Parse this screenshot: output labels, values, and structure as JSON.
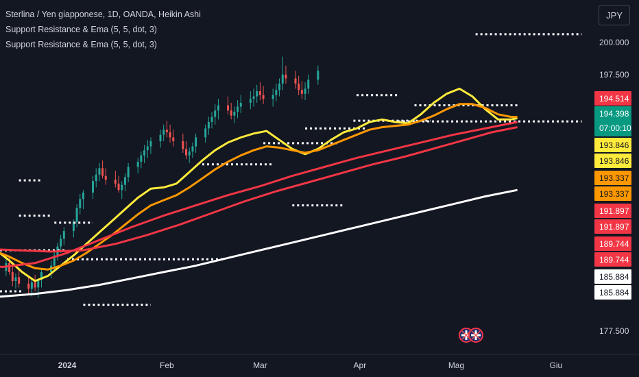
{
  "legend": {
    "symbol_line": "Sterlina / Yen giapponese, 1D, OANDA, Heikin Ashi",
    "indicator_1": "Support Resistance & Ema (5, 5, dot, 3)",
    "indicator_2": "Support Resistance & Ema (5, 5, dot, 3)"
  },
  "currency_button": "JPY",
  "colors": {
    "background": "#131722",
    "up": "#26a69a",
    "down": "#ef5350",
    "ema_fast": "#ffeb3b",
    "ema_mid": "#ff9800",
    "ema_slow": "#f23645",
    "ema_long": "#ffffff",
    "dots": "#ffffff"
  },
  "chart_data": {
    "type": "candlestick",
    "title": "Sterlina / Yen giapponese, 1D, OANDA, Heikin Ashi",
    "y_axis_ticks": [
      "200.000",
      "197.500",
      "177.500"
    ],
    "x_axis_ticks": [
      "2024",
      "Feb",
      "Mar",
      "Apr",
      "Mag",
      "Giu"
    ],
    "ylim": [
      176.8,
      201.3
    ],
    "grid": false,
    "price_tags": [
      {
        "label": "194.514",
        "value": 194.514,
        "bg": "#f23645",
        "fg": "#ffffff"
      },
      {
        "label": "194.398",
        "sub": "07:00:10",
        "value": 194.398,
        "bg": "#089981",
        "fg": "#ffffff"
      },
      {
        "label": "193.846",
        "value": 193.846,
        "bg": "#ffeb3b",
        "fg": "#131722"
      },
      {
        "label": "193.846",
        "value": 193.846,
        "bg": "#ffeb3b",
        "fg": "#131722"
      },
      {
        "label": "193.337",
        "value": 193.337,
        "bg": "#ff9800",
        "fg": "#131722"
      },
      {
        "label": "193.337",
        "value": 193.337,
        "bg": "#ff9800",
        "fg": "#131722"
      },
      {
        "label": "191.897",
        "value": 191.897,
        "bg": "#f23645",
        "fg": "#ffffff"
      },
      {
        "label": "191.897",
        "value": 191.897,
        "bg": "#f23645",
        "fg": "#ffffff"
      },
      {
        "label": "189.744",
        "value": 189.744,
        "bg": "#f23645",
        "fg": "#ffffff"
      },
      {
        "label": "189.744",
        "value": 189.744,
        "bg": "#f23645",
        "fg": "#ffffff"
      },
      {
        "label": "185.884",
        "value": 185.884,
        "bg": "#ffffff",
        "fg": "#131722"
      },
      {
        "label": "185.884",
        "value": 185.884,
        "bg": "#ffffff",
        "fg": "#131722"
      }
    ],
    "support_resistance_levels": [
      {
        "value": 200.65,
        "from_day": 127,
        "to_day": 160
      },
      {
        "value": 189.25,
        "from_day": -15,
        "to_day": -8
      },
      {
        "value": 186.5,
        "from_day": -15,
        "to_day": -5
      },
      {
        "value": 185.95,
        "from_day": -4,
        "to_day": 8
      },
      {
        "value": 187.3,
        "from_day": 70,
        "to_day": 86
      },
      {
        "value": 190.5,
        "from_day": 42,
        "to_day": 64
      },
      {
        "value": 192.15,
        "from_day": 61,
        "to_day": 84
      },
      {
        "value": 193.3,
        "from_day": 74,
        "to_day": 93
      },
      {
        "value": 193.85,
        "from_day": 103,
        "to_day": 160
      },
      {
        "value": 193.9,
        "from_day": 89,
        "to_day": 113
      },
      {
        "value": 195.1,
        "from_day": 108,
        "to_day": 140
      },
      {
        "value": 195.9,
        "from_day": 90,
        "to_day": 103
      },
      {
        "value": 183.8,
        "from_day": -23,
        "to_day": 0
      },
      {
        "value": 183.1,
        "from_day": 0,
        "to_day": 49
      },
      {
        "value": 180.6,
        "from_day": -33,
        "to_day": -14
      },
      {
        "value": 179.55,
        "from_day": 5,
        "to_day": 26
      }
    ],
    "ema_series": [
      {
        "key": "ema_fast",
        "points": [
          [
            -33,
            185.9
          ],
          [
            -28,
            185.1
          ],
          [
            -23,
            184.0
          ],
          [
            -18,
            183.0
          ],
          [
            -14,
            182.1
          ],
          [
            -10,
            181.4
          ],
          [
            -6,
            181.8
          ],
          [
            -2,
            182.6
          ],
          [
            2,
            183.4
          ],
          [
            6,
            184.3
          ],
          [
            10,
            185.2
          ],
          [
            14,
            186.1
          ],
          [
            18,
            187.0
          ],
          [
            22,
            187.9
          ],
          [
            26,
            188.6
          ],
          [
            30,
            188.7
          ],
          [
            34,
            189.0
          ],
          [
            38,
            189.9
          ],
          [
            42,
            190.8
          ],
          [
            46,
            191.6
          ],
          [
            50,
            192.2
          ],
          [
            54,
            192.6
          ],
          [
            58,
            192.9
          ],
          [
            62,
            193.1
          ],
          [
            66,
            192.4
          ],
          [
            70,
            191.7
          ],
          [
            74,
            191.3
          ],
          [
            78,
            191.7
          ],
          [
            82,
            192.4
          ],
          [
            86,
            193.0
          ],
          [
            90,
            193.3
          ],
          [
            94,
            193.8
          ],
          [
            98,
            194.0
          ],
          [
            102,
            193.8
          ],
          [
            106,
            193.7
          ],
          [
            110,
            194.4
          ],
          [
            114,
            195.3
          ],
          [
            118,
            196.0
          ],
          [
            122,
            196.4
          ],
          [
            126,
            195.8
          ],
          [
            130,
            194.8
          ],
          [
            134,
            194.0
          ],
          [
            138,
            194.0
          ],
          [
            140,
            194.1
          ]
        ]
      },
      {
        "key": "ema_mid",
        "points": [
          [
            -33,
            184.7
          ],
          [
            -28,
            184.3
          ],
          [
            -23,
            183.8
          ],
          [
            -18,
            183.3
          ],
          [
            -14,
            182.8
          ],
          [
            -10,
            182.4
          ],
          [
            -6,
            182.3
          ],
          [
            -2,
            182.6
          ],
          [
            2,
            183.0
          ],
          [
            6,
            183.6
          ],
          [
            10,
            184.3
          ],
          [
            14,
            185.0
          ],
          [
            18,
            185.8
          ],
          [
            22,
            186.6
          ],
          [
            26,
            187.3
          ],
          [
            30,
            187.7
          ],
          [
            34,
            188.1
          ],
          [
            38,
            188.7
          ],
          [
            42,
            189.4
          ],
          [
            46,
            190.1
          ],
          [
            50,
            190.7
          ],
          [
            54,
            191.2
          ],
          [
            58,
            191.6
          ],
          [
            62,
            191.9
          ],
          [
            66,
            191.8
          ],
          [
            70,
            191.6
          ],
          [
            74,
            191.4
          ],
          [
            78,
            191.6
          ],
          [
            82,
            192.0
          ],
          [
            86,
            192.4
          ],
          [
            90,
            192.8
          ],
          [
            94,
            193.2
          ],
          [
            98,
            193.4
          ],
          [
            102,
            193.5
          ],
          [
            106,
            193.6
          ],
          [
            110,
            193.9
          ],
          [
            114,
            194.3
          ],
          [
            118,
            194.8
          ],
          [
            122,
            195.2
          ],
          [
            126,
            195.2
          ],
          [
            130,
            194.9
          ],
          [
            134,
            194.4
          ],
          [
            138,
            194.2
          ],
          [
            140,
            194.2
          ]
        ]
      },
      {
        "key": "ema_slow",
        "points": [
          [
            -33,
            184.0
          ],
          [
            -25,
            183.9
          ],
          [
            -15,
            183.8
          ],
          [
            -5,
            183.7
          ],
          [
            5,
            183.8
          ],
          [
            15,
            184.3
          ],
          [
            25,
            185.0
          ],
          [
            35,
            185.8
          ],
          [
            45,
            186.7
          ],
          [
            55,
            187.6
          ],
          [
            65,
            188.4
          ],
          [
            75,
            189.1
          ],
          [
            85,
            189.8
          ],
          [
            95,
            190.5
          ],
          [
            105,
            191.1
          ],
          [
            115,
            191.8
          ],
          [
            125,
            192.5
          ],
          [
            132,
            193.0
          ],
          [
            140,
            193.4
          ]
        ]
      },
      {
        "key": "ema_long",
        "points": [
          [
            -33,
            180.0
          ],
          [
            -20,
            180.2
          ],
          [
            -10,
            180.4
          ],
          [
            0,
            180.7
          ],
          [
            10,
            181.1
          ],
          [
            20,
            181.6
          ],
          [
            30,
            182.1
          ],
          [
            40,
            182.6
          ],
          [
            50,
            183.2
          ],
          [
            60,
            183.8
          ],
          [
            70,
            184.4
          ],
          [
            80,
            185.0
          ],
          [
            90,
            185.6
          ],
          [
            100,
            186.2
          ],
          [
            110,
            186.8
          ],
          [
            120,
            187.4
          ],
          [
            130,
            188.0
          ],
          [
            140,
            188.5
          ]
        ]
      },
      {
        "key": "ema_slow",
        "points": [
          [
            -33,
            182.6
          ],
          [
            -20,
            182.5
          ],
          [
            -10,
            182.8
          ],
          [
            0,
            183.6
          ],
          [
            10,
            184.6
          ],
          [
            20,
            185.6
          ],
          [
            30,
            186.5
          ],
          [
            40,
            187.3
          ],
          [
            50,
            188.1
          ],
          [
            60,
            188.8
          ],
          [
            70,
            189.6
          ],
          [
            80,
            190.3
          ],
          [
            90,
            191.0
          ],
          [
            100,
            191.6
          ],
          [
            110,
            192.2
          ],
          [
            120,
            192.8
          ],
          [
            130,
            193.3
          ],
          [
            140,
            193.8
          ]
        ]
      }
    ],
    "candles_note": "Heikin Ashi daily candles; approximate OHLC per trading day (day index relative to 1 Jan 2024)",
    "candles": [
      [
        -33,
        185.6,
        186.2,
        184.9,
        185.9
      ],
      [
        -32,
        185.9,
        186.4,
        185.0,
        185.2
      ],
      [
        -31,
        185.2,
        185.6,
        184.5,
        184.8
      ],
      [
        -30,
        184.8,
        185.2,
        183.8,
        184.1
      ],
      [
        -29,
        184.1,
        184.6,
        183.0,
        183.4
      ],
      [
        -26,
        183.4,
        184.0,
        182.6,
        183.8
      ],
      [
        -25,
        183.8,
        184.5,
        183.0,
        183.3
      ],
      [
        -24,
        183.3,
        183.7,
        182.2,
        182.6
      ],
      [
        -23,
        182.6,
        183.1,
        181.5,
        181.9
      ],
      [
        -22,
        181.9,
        182.5,
        181.0,
        182.2
      ],
      [
        -19,
        182.2,
        183.2,
        181.8,
        182.8
      ],
      [
        -18,
        182.8,
        183.4,
        181.9,
        182.1
      ],
      [
        -17,
        182.1,
        182.6,
        181.0,
        181.4
      ],
      [
        -16,
        181.4,
        182.0,
        180.8,
        181.7
      ],
      [
        -15,
        181.7,
        182.3,
        180.9,
        181.2
      ],
      [
        -12,
        181.2,
        181.8,
        180.4,
        180.8
      ],
      [
        -11,
        180.8,
        181.5,
        180.2,
        181.3
      ],
      [
        -10,
        181.3,
        181.9,
        180.6,
        180.9
      ],
      [
        -9,
        180.9,
        181.6,
        180.1,
        181.5
      ],
      [
        -8,
        181.5,
        182.4,
        180.9,
        182.1
      ],
      [
        -5,
        182.1,
        183.0,
        181.6,
        182.6
      ],
      [
        -4,
        182.6,
        183.8,
        182.2,
        183.4
      ],
      [
        -3,
        183.4,
        184.4,
        183.0,
        184.1
      ],
      [
        -2,
        184.1,
        185.0,
        183.6,
        184.7
      ],
      [
        -1,
        184.7,
        185.6,
        184.2,
        185.3
      ],
      [
        2,
        185.3,
        186.2,
        184.8,
        186.0
      ],
      [
        3,
        186.0,
        187.4,
        185.6,
        187.1
      ],
      [
        4,
        187.1,
        188.2,
        186.6,
        187.8
      ],
      [
        5,
        187.8,
        188.5,
        187.0,
        188.3
      ],
      [
        8,
        188.3,
        189.6,
        187.8,
        189.2
      ],
      [
        9,
        189.2,
        190.2,
        188.7,
        189.7
      ],
      [
        10,
        189.7,
        190.6,
        189.2,
        190.2
      ],
      [
        11,
        190.2,
        190.8,
        189.4,
        189.6
      ],
      [
        12,
        189.6,
        190.2,
        188.9,
        189.3
      ],
      [
        15,
        189.3,
        190.0,
        188.7,
        189.0
      ],
      [
        16,
        189.0,
        189.6,
        188.3,
        188.5
      ],
      [
        17,
        188.5,
        189.2,
        187.8,
        188.9
      ],
      [
        18,
        188.9,
        189.8,
        188.4,
        189.5
      ],
      [
        19,
        189.5,
        190.6,
        189.1,
        190.3
      ],
      [
        22,
        190.3,
        191.0,
        189.8,
        190.7
      ],
      [
        23,
        190.7,
        191.5,
        190.2,
        191.2
      ],
      [
        24,
        191.2,
        192.0,
        190.6,
        191.6
      ],
      [
        25,
        191.6,
        192.4,
        191.0,
        191.9
      ],
      [
        26,
        191.9,
        192.6,
        191.3,
        192.3
      ],
      [
        29,
        192.3,
        193.2,
        191.8,
        192.8
      ],
      [
        30,
        192.8,
        193.6,
        192.3,
        193.2
      ],
      [
        31,
        193.2,
        193.9,
        192.6,
        193.0
      ],
      [
        32,
        193.0,
        193.6,
        192.2,
        192.6
      ],
      [
        33,
        192.6,
        193.2,
        191.9,
        192.3
      ],
      [
        36,
        192.3,
        192.9,
        191.4,
        191.7
      ],
      [
        37,
        191.7,
        192.3,
        190.9,
        191.2
      ],
      [
        38,
        191.2,
        191.8,
        190.6,
        191.5
      ],
      [
        39,
        191.5,
        192.2,
        191.0,
        191.9
      ],
      [
        40,
        191.9,
        192.9,
        191.4,
        192.6
      ],
      [
        43,
        192.6,
        193.6,
        192.2,
        193.3
      ],
      [
        44,
        193.3,
        194.2,
        192.8,
        193.8
      ],
      [
        45,
        193.8,
        194.6,
        193.3,
        194.2
      ],
      [
        46,
        194.2,
        195.2,
        193.6,
        194.7
      ],
      [
        47,
        194.7,
        195.6,
        194.0,
        195.1
      ],
      [
        50,
        195.1,
        195.8,
        194.4,
        194.7
      ],
      [
        51,
        194.7,
        195.3,
        194.0,
        194.3
      ],
      [
        52,
        194.3,
        195.0,
        193.7,
        194.6
      ],
      [
        53,
        194.6,
        195.5,
        194.1,
        195.0
      ],
      [
        54,
        195.0,
        195.9,
        194.5,
        195.3
      ],
      [
        57,
        195.3,
        196.2,
        194.8,
        195.6
      ],
      [
        58,
        195.6,
        196.4,
        195.0,
        195.8
      ],
      [
        59,
        195.8,
        196.7,
        195.3,
        196.2
      ],
      [
        60,
        196.2,
        196.9,
        195.5,
        195.9
      ],
      [
        61,
        195.9,
        196.6,
        195.2,
        195.6
      ],
      [
        64,
        195.6,
        196.4,
        195.0,
        195.9
      ],
      [
        65,
        195.9,
        196.8,
        195.4,
        196.3
      ],
      [
        66,
        196.3,
        197.2,
        195.8,
        196.8
      ],
      [
        67,
        196.8,
        198.9,
        196.3,
        197.5
      ],
      [
        68,
        197.5,
        198.2,
        196.8,
        197.2
      ],
      [
        71,
        197.2,
        197.8,
        196.4,
        196.8
      ],
      [
        72,
        196.8,
        197.4,
        195.9,
        196.3
      ],
      [
        73,
        196.3,
        197.0,
        195.6,
        196.0
      ],
      [
        74,
        196.0,
        196.9,
        195.5,
        196.4
      ],
      [
        75,
        196.4,
        197.5,
        196.0,
        197.1
      ],
      [
        78,
        197.1,
        198.2,
        196.7,
        197.8
      ]
    ]
  }
}
